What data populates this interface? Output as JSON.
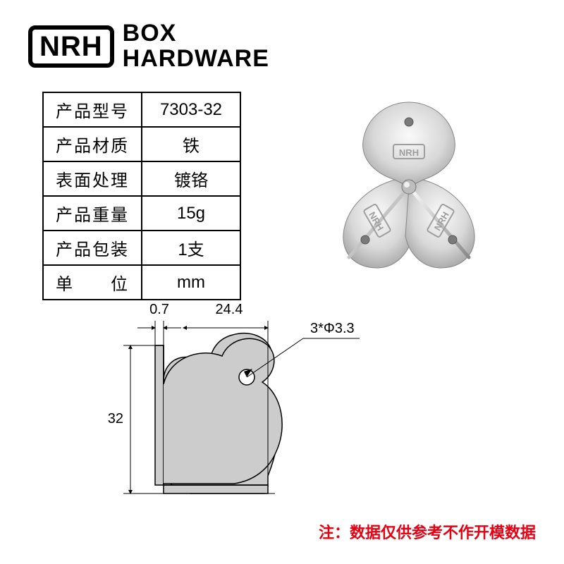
{
  "brand": {
    "logo_text": "NRH",
    "line1": "BOX",
    "line2": "HARDWARE"
  },
  "spec_table": {
    "rows": [
      {
        "label": "产品型号",
        "value": "7303-32"
      },
      {
        "label": "产品材质",
        "value": "铁"
      },
      {
        "label": "表面处理",
        "value": "镀铬"
      },
      {
        "label": "产品重量",
        "value": "15g"
      },
      {
        "label": "产品包装",
        "value": "1支"
      },
      {
        "label": "单　　位",
        "value": "mm"
      }
    ],
    "border_color": "#000000",
    "font_size": 24
  },
  "product_image": {
    "brand_mark": "NRH",
    "body_color": "#d8d8d8",
    "highlight_color": "#f5f5f5",
    "shadow_color": "#a0a0a0",
    "hole_color": "#888888"
  },
  "diagram": {
    "shape_fill": "#cccccc",
    "line_color": "#000000",
    "dim_font_size": 18,
    "dims": {
      "thickness": "0.7",
      "width": "24.4",
      "height": "32",
      "hole_spec": "3*Φ3.3"
    }
  },
  "footnote": {
    "text": "注：数据仅供参考不作开模数据",
    "color": "#e60012"
  }
}
